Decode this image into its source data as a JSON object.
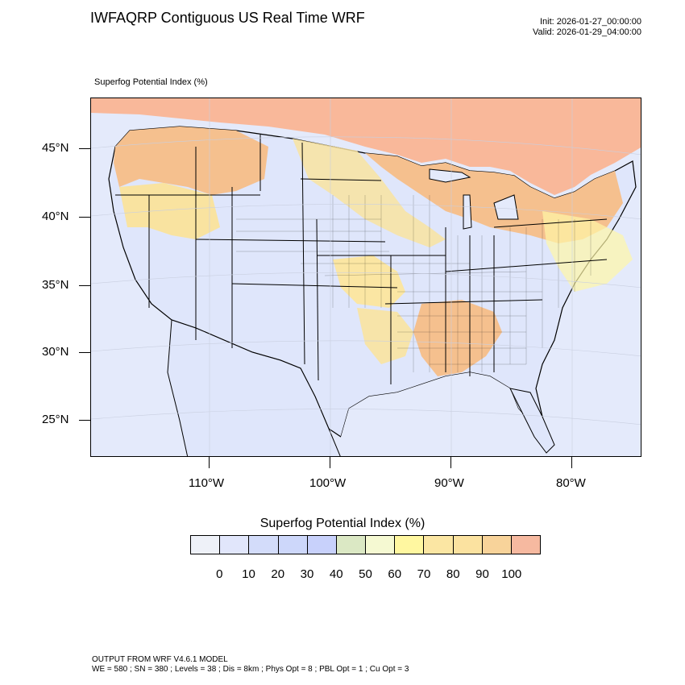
{
  "header": {
    "title": "IWFAQRP Contiguous US Real Time WRF",
    "init": "Init: 2026-01-27_00:00:00",
    "valid": "Valid: 2026-01-29_04:00:00",
    "field_label": "Superfog Potential Index   (%)"
  },
  "map": {
    "lat_labels": [
      "45°N",
      "40°N",
      "35°N",
      "30°N",
      "25°N"
    ],
    "lon_labels": [
      "110°W",
      "100°W",
      "90°W",
      "80°W"
    ],
    "colors": {
      "land_low": "#dfe6fb",
      "ocean": "#e4eafb",
      "canada_high": "#f9b89a",
      "moderate": "#f9e3a0",
      "high": "#f5c08e",
      "green": "#dbe8bd",
      "yellow": "#fff7a6",
      "boundary": "#000000"
    }
  },
  "colorbar": {
    "title": "Superfog Potential Index  (%)",
    "labels": [
      "0",
      "10",
      "20",
      "30",
      "40",
      "50",
      "60",
      "70",
      "80",
      "90",
      "100"
    ],
    "colors": [
      "#eef1f8",
      "#e1e6fb",
      "#d3dcfa",
      "#cdd7fa",
      "#c8d1fb",
      "#dbe8c4",
      "#f5f9d2",
      "#fff7a0",
      "#fbe6a3",
      "#fbe2a0",
      "#f8d39a",
      "#f6b9a0"
    ]
  },
  "footer": {
    "line1": "OUTPUT FROM WRF V4.6.1 MODEL",
    "line2": "WE = 580 ; SN = 380 ; Levels = 38 ; Dis = 8km ; Phys Opt = 8 ; PBL Opt = 1 ; Cu Opt = 3"
  }
}
